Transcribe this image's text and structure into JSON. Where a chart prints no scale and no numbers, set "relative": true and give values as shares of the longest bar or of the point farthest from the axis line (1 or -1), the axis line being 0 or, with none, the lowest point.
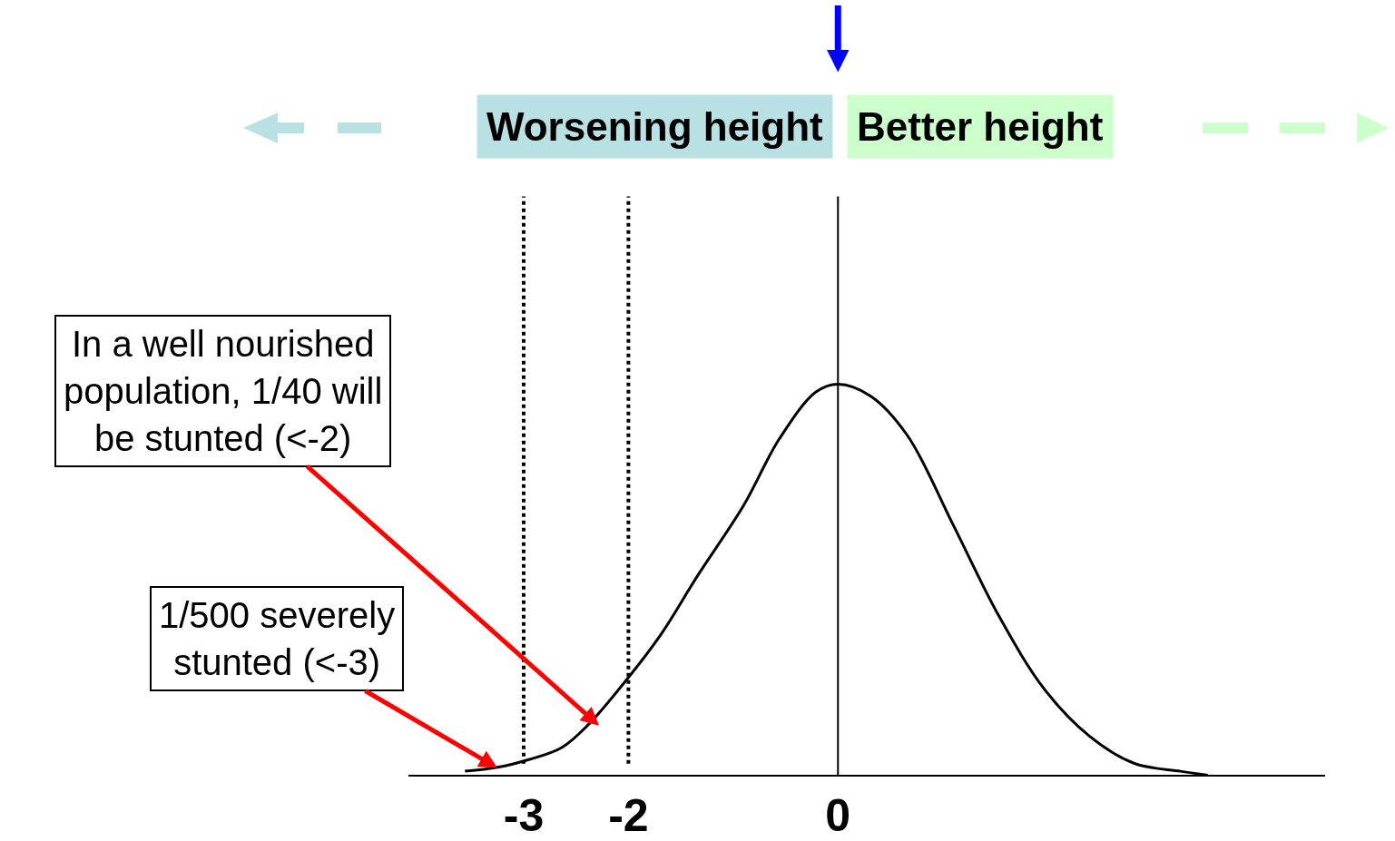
{
  "chart_data": {
    "type": "line",
    "relative": true,
    "color": "#000000",
    "line_style": "solid",
    "marker": "none",
    "x": [
      -3.56,
      -3.25,
      -2.95,
      -2.64,
      -2.38,
      -2.03,
      -1.69,
      -1.34,
      -0.9,
      -0.56,
      -0.21,
      0,
      0.31,
      0.66,
      1.1,
      1.53,
      1.97,
      2.4,
      2.83,
      3.27,
      3.53
    ],
    "values": [
      0.01,
      0.02,
      0.04,
      0.07,
      0.13,
      0.24,
      0.36,
      0.51,
      0.69,
      0.86,
      0.98,
      1,
      0.97,
      0.87,
      0.64,
      0.41,
      0.22,
      0.1,
      0.03,
      0.01,
      0
    ],
    "xlim": [
      -4.1,
      4.65
    ],
    "xticks": [
      -3,
      -2,
      0
    ],
    "tick_labels": "x",
    "ref_lines": [
      {
        "axis": "x",
        "value": -3,
        "color": "#000000",
        "line_style": "dotted"
      },
      {
        "axis": "x",
        "value": -2,
        "color": "#000000",
        "line_style": "dotted"
      },
      {
        "axis": "x",
        "value": 0,
        "color": "#000000",
        "line_style": "solid"
      }
    ],
    "annotations": [
      "Worsening height",
      "Better height",
      "In a well nourished\npopulation, 1/40 will\nbe stunted (<-2)",
      "1/500 severely\nstunted (<-3)"
    ]
  }
}
